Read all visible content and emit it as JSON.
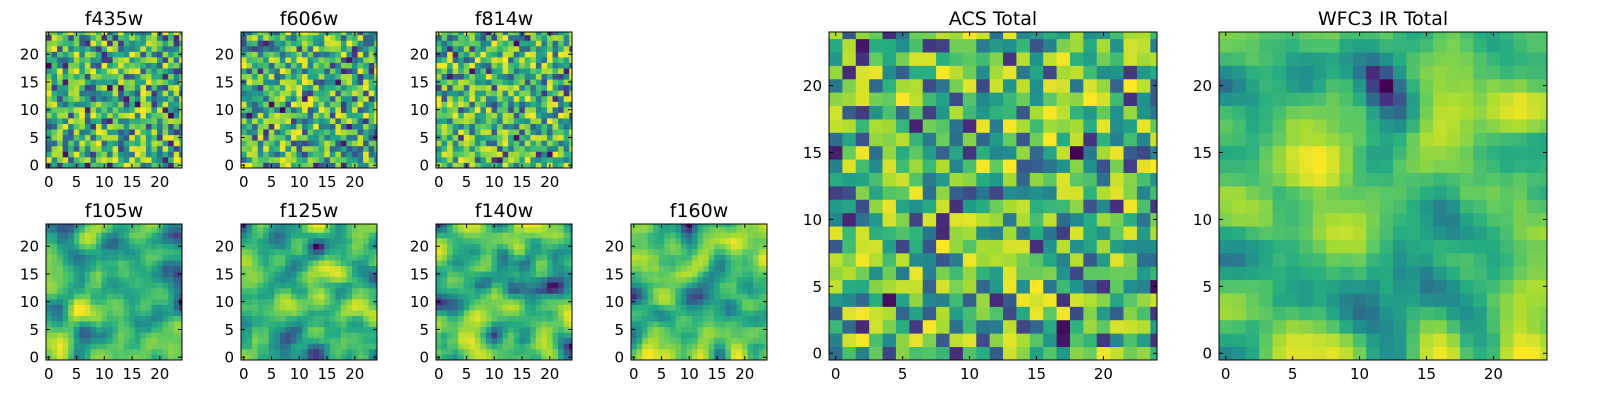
{
  "colormap": "viridis",
  "colors": {
    "low": "#440154",
    "high": "#fde725"
  },
  "chart_data": [
    {
      "type": "heatmap",
      "title": "f435w",
      "grid_size": 25,
      "xticks": [
        0,
        5,
        10,
        15,
        20
      ],
      "yticks": [
        0,
        5,
        10,
        15,
        20
      ],
      "texture": "noise"
    },
    {
      "type": "heatmap",
      "title": "f606w",
      "grid_size": 25,
      "xticks": [
        0,
        5,
        10,
        15,
        20
      ],
      "yticks": [
        0,
        5,
        10,
        15,
        20
      ],
      "texture": "noise"
    },
    {
      "type": "heatmap",
      "title": "f814w",
      "grid_size": 25,
      "xticks": [
        0,
        5,
        10,
        15,
        20
      ],
      "yticks": [
        0,
        5,
        10,
        15,
        20
      ],
      "texture": "noise"
    },
    {
      "type": "heatmap",
      "title": "f105w",
      "grid_size": 25,
      "xticks": [
        0,
        5,
        10,
        15,
        20
      ],
      "yticks": [
        0,
        5,
        10,
        15,
        20
      ],
      "texture": "smooth"
    },
    {
      "type": "heatmap",
      "title": "f125w",
      "grid_size": 25,
      "xticks": [
        0,
        5,
        10,
        15,
        20
      ],
      "yticks": [
        0,
        5,
        10,
        15,
        20
      ],
      "texture": "smooth"
    },
    {
      "type": "heatmap",
      "title": "f140w",
      "grid_size": 25,
      "xticks": [
        0,
        5,
        10,
        15,
        20
      ],
      "yticks": [
        0,
        5,
        10,
        15,
        20
      ],
      "texture": "smooth"
    },
    {
      "type": "heatmap",
      "title": "f160w",
      "grid_size": 25,
      "xticks": [
        0,
        5,
        10,
        15,
        20
      ],
      "yticks": [
        0,
        5,
        10,
        15,
        20
      ],
      "texture": "smooth"
    },
    {
      "type": "heatmap",
      "title": "ACS Total",
      "grid_size": 25,
      "xticks": [
        0,
        5,
        10,
        15,
        20
      ],
      "yticks": [
        0,
        5,
        10,
        15,
        20
      ],
      "texture": "noise"
    },
    {
      "type": "heatmap",
      "title": "WFC3 IR Total",
      "grid_size": 25,
      "xticks": [
        0,
        5,
        10,
        15,
        20
      ],
      "yticks": [
        0,
        5,
        10,
        15,
        20
      ],
      "texture": "smooth"
    }
  ]
}
